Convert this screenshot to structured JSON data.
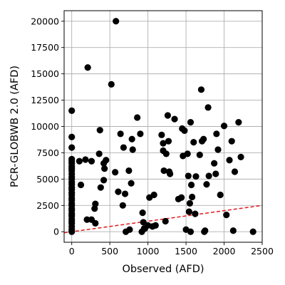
{
  "chart_data": {
    "type": "scatter",
    "xlabel": "Observed (AFD)",
    "ylabel": "PCR-GLOBWB 2.0 (AFD)",
    "xlim": [
      -100,
      2500
    ],
    "ylim": [
      -1000,
      21000
    ],
    "xticks": [
      0,
      500,
      1000,
      1500,
      2000,
      2500
    ],
    "yticks": [
      0,
      2500,
      5000,
      7500,
      10000,
      12500,
      15000,
      17500,
      20000
    ],
    "xtick_labels": [
      "0",
      "500",
      "1000",
      "1500",
      "2000",
      "2500"
    ],
    "ytick_labels": [
      "0",
      "2500",
      "5000",
      "7500",
      "10000",
      "12500",
      "15000",
      "17500",
      "20000"
    ],
    "grid": true,
    "marker_color": "#000000",
    "reference_line": {
      "style": "dashed",
      "color": "#e41a1c",
      "x": [
        -100,
        2500
      ],
      "y": [
        -100,
        2500
      ]
    },
    "points": [
      [
        0,
        11500
      ],
      [
        0,
        9000
      ],
      [
        0,
        8000
      ],
      [
        0,
        6900
      ],
      [
        0,
        6700
      ],
      [
        0,
        6500
      ],
      [
        0,
        6200
      ],
      [
        0,
        6000
      ],
      [
        0,
        5800
      ],
      [
        0,
        5500
      ],
      [
        0,
        5200
      ],
      [
        0,
        5000
      ],
      [
        0,
        4700
      ],
      [
        0,
        4500
      ],
      [
        0,
        4200
      ],
      [
        0,
        4000
      ],
      [
        0,
        3700
      ],
      [
        0,
        3500
      ],
      [
        0,
        3200
      ],
      [
        0,
        3000
      ],
      [
        0,
        2700
      ],
      [
        0,
        2500
      ],
      [
        0,
        2200
      ],
      [
        0,
        2000
      ],
      [
        0,
        1700
      ],
      [
        0,
        1500
      ],
      [
        0,
        1200
      ],
      [
        0,
        1000
      ],
      [
        0,
        800
      ],
      [
        0,
        500
      ],
      [
        0,
        200
      ],
      [
        0,
        0
      ],
      [
        100,
        6700
      ],
      [
        120,
        4450
      ],
      [
        180,
        6850
      ],
      [
        200,
        1150
      ],
      [
        210,
        15600
      ],
      [
        260,
        1150
      ],
      [
        260,
        6700
      ],
      [
        300,
        2200
      ],
      [
        310,
        2650
      ],
      [
        310,
        800
      ],
      [
        360,
        7400
      ],
      [
        370,
        9650
      ],
      [
        380,
        4200
      ],
      [
        420,
        4900
      ],
      [
        420,
        6500
      ],
      [
        430,
        6000
      ],
      [
        450,
        6800
      ],
      [
        520,
        14000
      ],
      [
        570,
        5650
      ],
      [
        580,
        20000
      ],
      [
        610,
        3800
      ],
      [
        640,
        9300
      ],
      [
        670,
        2500
      ],
      [
        680,
        8000
      ],
      [
        700,
        3600
      ],
      [
        710,
        0
      ],
      [
        750,
        5800
      ],
      [
        760,
        200
      ],
      [
        780,
        4600
      ],
      [
        790,
        8800
      ],
      [
        800,
        7800
      ],
      [
        860,
        10850
      ],
      [
        900,
        9300
      ],
      [
        920,
        0
      ],
      [
        930,
        1800
      ],
      [
        940,
        900
      ],
      [
        950,
        300
      ],
      [
        960,
        300
      ],
      [
        1000,
        600
      ],
      [
        1020,
        3250
      ],
      [
        1060,
        500
      ],
      [
        1080,
        3500
      ],
      [
        1100,
        600
      ],
      [
        1180,
        9200
      ],
      [
        1200,
        7700
      ],
      [
        1200,
        8400
      ],
      [
        1210,
        5800
      ],
      [
        1230,
        1000
      ],
      [
        1240,
        7400
      ],
      [
        1260,
        11050
      ],
      [
        1270,
        8600
      ],
      [
        1280,
        5700
      ],
      [
        1290,
        5500
      ],
      [
        1350,
        10700
      ],
      [
        1400,
        3100
      ],
      [
        1440,
        3250
      ],
      [
        1450,
        9800
      ],
      [
        1460,
        7200
      ],
      [
        1480,
        9600
      ],
      [
        1500,
        200
      ],
      [
        1520,
        7400
      ],
      [
        1530,
        5300
      ],
      [
        1540,
        1900
      ],
      [
        1550,
        2700
      ],
      [
        1560,
        10400
      ],
      [
        1560,
        0
      ],
      [
        1570,
        4450
      ],
      [
        1580,
        3300
      ],
      [
        1600,
        8500
      ],
      [
        1620,
        1700
      ],
      [
        1630,
        5250
      ],
      [
        1680,
        7300
      ],
      [
        1700,
        13500
      ],
      [
        1710,
        8600
      ],
      [
        1730,
        8800
      ],
      [
        1740,
        0
      ],
      [
        1750,
        100
      ],
      [
        1770,
        4500
      ],
      [
        1790,
        11800
      ],
      [
        1800,
        5300
      ],
      [
        1870,
        6500
      ],
      [
        1890,
        5500
      ],
      [
        1900,
        9300
      ],
      [
        1920,
        7800
      ],
      [
        1950,
        3500
      ],
      [
        2000,
        10050
      ],
      [
        2030,
        1600
      ],
      [
        2070,
        6800
      ],
      [
        2100,
        8600
      ],
      [
        2120,
        100
      ],
      [
        2140,
        5700
      ],
      [
        2190,
        10400
      ],
      [
        2220,
        7100
      ],
      [
        2380,
        0
      ]
    ]
  }
}
